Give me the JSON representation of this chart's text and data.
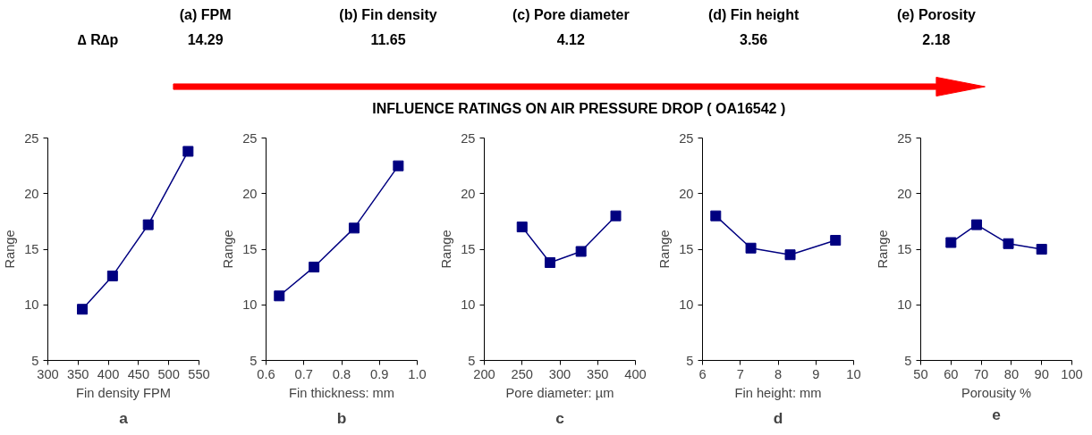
{
  "chart_data": [
    {
      "type": "other",
      "title": "INFLUENCE RATINGS ON AIR PRESSURE DROP ( OA16542 )",
      "categories": [
        "(a) FPM",
        "(b) Fin density",
        "(c) Pore diameter",
        "(d) Fin height",
        "(e) Porosity"
      ],
      "values": [
        14.29,
        11.65,
        4.12,
        3.56,
        2.18
      ],
      "data_labels": true,
      "ylabel": "∆ R∆p",
      "color": "#ff0000"
    },
    {
      "type": "line",
      "xlabel": "Fin density FPM",
      "ylabel": "Range",
      "annotations": [
        "a"
      ],
      "x": [
        357,
        407,
        466,
        532
      ],
      "series": [
        {
          "color": "#000080",
          "values": [
            9.6,
            12.6,
            17.2,
            23.8
          ]
        }
      ],
      "xlim": [
        300,
        550
      ],
      "xticks": [
        300,
        350,
        400,
        450,
        500,
        550
      ],
      "ylim": [
        5,
        25
      ],
      "yticks": [
        5,
        10,
        15,
        20,
        25
      ],
      "marker": "square",
      "grid": false
    },
    {
      "type": "line",
      "xlabel": "Fin thickness: mm",
      "ylabel": "Range",
      "annotations": [
        "b"
      ],
      "x": [
        0.635,
        0.727,
        0.833,
        0.95
      ],
      "series": [
        {
          "color": "#000080",
          "values": [
            10.8,
            13.4,
            16.9,
            22.5
          ]
        }
      ],
      "xlim": [
        0.6,
        1.0
      ],
      "xticks": [
        {
          "value": 0.6,
          "label": "0.6"
        },
        {
          "value": 0.7,
          "label": "0.7"
        },
        {
          "value": 0.8,
          "label": "0.8"
        },
        {
          "value": 0.9,
          "label": "0.9"
        },
        {
          "value": 1.0,
          "label": "1.0"
        }
      ],
      "ylim": [
        5,
        25
      ],
      "yticks": [
        5,
        10,
        15,
        20,
        25
      ],
      "marker": "square",
      "grid": false
    },
    {
      "type": "line",
      "xlabel": "Pore diameter: µm",
      "ylabel": "Range",
      "annotations": [
        "c"
      ],
      "x": [
        250,
        287,
        328,
        374
      ],
      "series": [
        {
          "color": "#000080",
          "values": [
            17.0,
            13.8,
            14.8,
            18.0
          ]
        }
      ],
      "xlim": [
        200,
        400
      ],
      "xticks": [
        200,
        250,
        300,
        350,
        400
      ],
      "ylim": [
        5,
        25
      ],
      "yticks": [
        5,
        10,
        15,
        20,
        25
      ],
      "marker": "square",
      "grid": false
    },
    {
      "type": "line",
      "xlabel": "Fin height: mm",
      "ylabel": "Range",
      "annotations": [
        "d"
      ],
      "x": [
        6.35,
        7.28,
        8.32,
        9.52
      ],
      "series": [
        {
          "color": "#000080",
          "values": [
            18.0,
            15.1,
            14.5,
            15.8
          ]
        }
      ],
      "xlim": [
        6,
        10
      ],
      "xticks": [
        6,
        7,
        8,
        9,
        10
      ],
      "ylim": [
        5,
        25
      ],
      "yticks": [
        5,
        10,
        15,
        20,
        25
      ],
      "marker": "square",
      "grid": false
    },
    {
      "type": "line",
      "xlabel": "Porousity %",
      "ylabel": "Range",
      "annotations": [
        "e"
      ],
      "x": [
        60,
        68.5,
        79,
        90
      ],
      "series": [
        {
          "color": "#000080",
          "values": [
            15.6,
            17.2,
            15.5,
            15.0
          ]
        }
      ],
      "xlim": [
        50,
        100
      ],
      "xticks": [
        50,
        60,
        70,
        80,
        90,
        100
      ],
      "ylim": [
        5,
        25
      ],
      "yticks": [
        5,
        10,
        15,
        20,
        25
      ],
      "marker": "square",
      "grid": false
    }
  ]
}
